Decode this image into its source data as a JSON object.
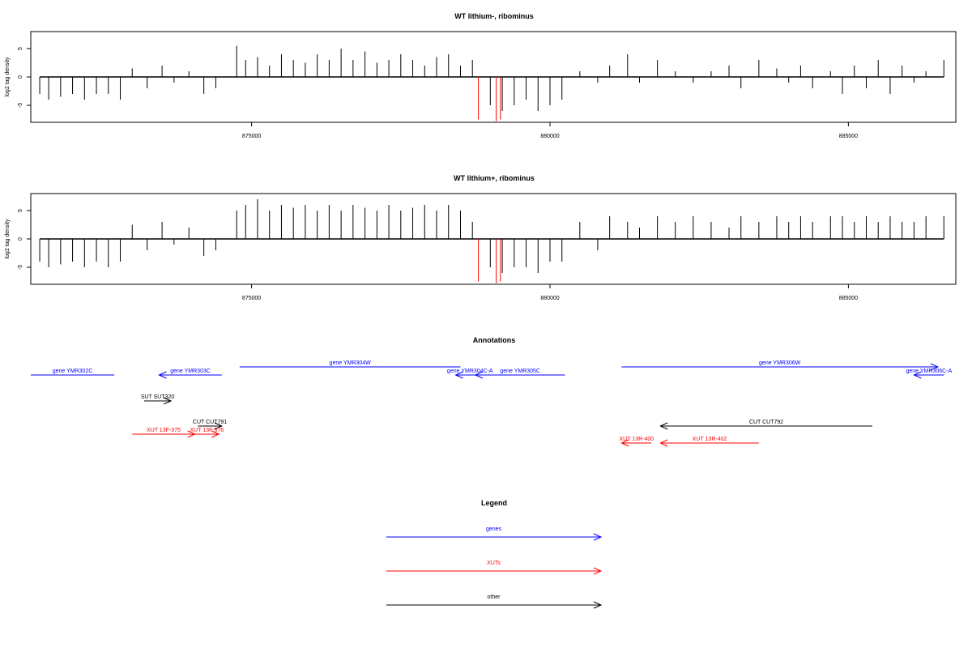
{
  "chart_data": [
    {
      "type": "bar",
      "title": "WT lithium-, ribominus",
      "xlabel": "",
      "ylabel": "log2 tag density",
      "xlim": [
        871300,
        886800
      ],
      "ylim": [
        -8,
        8
      ],
      "x_ticks": [
        875000,
        880000,
        885000
      ],
      "y_ticks": [
        5,
        0,
        -5
      ],
      "x_tick_labels": [
        "875000",
        "880000",
        "885000"
      ],
      "y_tick_labels": [
        "5",
        "0",
        "-5"
      ],
      "grid": false,
      "colors": {
        "default": "#000000",
        "highlight": "#ff0000"
      },
      "series": [
        {
          "name": "",
          "x": [
            871450,
            871600,
            871800,
            872000,
            872200,
            872400,
            872600,
            872800,
            873000,
            873250,
            873500,
            873700,
            873950,
            874200,
            874400,
            874750,
            874900,
            875100,
            875300,
            875500,
            875700,
            875900,
            876100,
            876300,
            876500,
            876700,
            876900,
            877100,
            877300,
            877500,
            877700,
            877900,
            878100,
            878300,
            878500,
            878700,
            879000,
            879200,
            879400,
            879600,
            879800,
            880000,
            880200,
            880500,
            880800,
            881000,
            881300,
            881500,
            881800,
            882100,
            882400,
            882700,
            883000,
            883200,
            883500,
            883800,
            884000,
            884200,
            884400,
            884700,
            884900,
            885100,
            885300,
            885500,
            885700,
            885900,
            886100,
            886300,
            886600
          ],
          "values": [
            -3,
            -4,
            -3.5,
            -3,
            -4,
            -3,
            -3,
            -4,
            1.5,
            -2,
            2,
            -1,
            1,
            -3,
            -2,
            5.5,
            3,
            3.5,
            2,
            4,
            3,
            2.5,
            4,
            3,
            5,
            3,
            4.5,
            2.5,
            3,
            4,
            3,
            2,
            3.5,
            4,
            2,
            3,
            -5,
            -6,
            -5,
            -4,
            -6,
            -5,
            -4,
            1,
            -1,
            2,
            4,
            -1,
            3,
            1,
            -1,
            1,
            2,
            -2,
            3,
            1.5,
            -1,
            2,
            -2,
            1,
            -3,
            2,
            -2,
            3,
            -3,
            2,
            -1,
            1,
            3
          ]
        }
      ],
      "highlights": [
        {
          "x": 878800,
          "value": -7.5
        },
        {
          "x": 879100,
          "value": -7.8
        },
        {
          "x": 879170,
          "value": -7.5
        }
      ]
    },
    {
      "type": "bar",
      "title": "WT lithium+, ribominus",
      "xlabel": "",
      "ylabel": "log2 tag density",
      "xlim": [
        871300,
        886800
      ],
      "ylim": [
        -8,
        8
      ],
      "x_ticks": [
        875000,
        880000,
        885000
      ],
      "y_ticks": [
        5,
        0,
        -5
      ],
      "x_tick_labels": [
        "875000",
        "880000",
        "885000"
      ],
      "y_tick_labels": [
        "5",
        "0",
        "-5"
      ],
      "grid": false,
      "colors": {
        "default": "#000000",
        "highlight": "#ff0000"
      },
      "series": [
        {
          "name": "",
          "x": [
            871450,
            871600,
            871800,
            872000,
            872200,
            872400,
            872600,
            872800,
            873000,
            873250,
            873500,
            873700,
            873950,
            874200,
            874400,
            874750,
            874900,
            875100,
            875300,
            875500,
            875700,
            875900,
            876100,
            876300,
            876500,
            876700,
            876900,
            877100,
            877300,
            877500,
            877700,
            877900,
            878100,
            878300,
            878500,
            878700,
            879000,
            879200,
            879400,
            879600,
            879800,
            880000,
            880200,
            880500,
            880800,
            881000,
            881300,
            881500,
            881800,
            882100,
            882400,
            882700,
            883000,
            883200,
            883500,
            883800,
            884000,
            884200,
            884400,
            884700,
            884900,
            885100,
            885300,
            885500,
            885700,
            885900,
            886100,
            886300,
            886600
          ],
          "values": [
            -4,
            -5,
            -4.5,
            -4,
            -5,
            -4,
            -5,
            -4,
            2.5,
            -2,
            3,
            -1,
            2,
            -3,
            -2,
            5,
            6,
            7,
            5,
            6,
            5.5,
            6,
            5,
            6,
            5,
            6,
            5.5,
            5,
            6,
            5,
            5.5,
            6,
            5,
            6,
            5,
            3,
            -5,
            -6,
            -5,
            -5,
            -6,
            -4,
            -4,
            3,
            -2,
            4,
            3,
            2,
            4,
            3,
            4,
            3,
            2,
            4,
            3,
            4,
            3,
            4,
            3,
            4,
            4,
            3,
            4,
            3,
            4,
            3,
            3,
            4,
            4
          ]
        }
      ],
      "highlights": [
        {
          "x": 878800,
          "value": -7.5
        },
        {
          "x": 879100,
          "value": -7.8
        },
        {
          "x": 879170,
          "value": -7.5
        }
      ]
    }
  ],
  "annotations": {
    "title": "Annotations",
    "xlim": [
      871300,
      886800
    ],
    "features": [
      {
        "label": "gene YMR302C",
        "start": 871300,
        "end": 872700,
        "strand": "none",
        "category": "genes"
      },
      {
        "label": "gene YMR303C",
        "start": 873450,
        "end": 874500,
        "strand": "-",
        "category": "genes"
      },
      {
        "label": "gene YMR304W",
        "start": 874800,
        "end": 878500,
        "strand": "none",
        "category": "genes"
      },
      {
        "label": "gene YMR304C-A",
        "start": 878420,
        "end": 878900,
        "strand": "-",
        "category": "genes"
      },
      {
        "label": "gene YMR305C",
        "start": 878750,
        "end": 880250,
        "strand": "-",
        "category": "genes"
      },
      {
        "label": "gene YMR306W",
        "start": 881200,
        "end": 886500,
        "strand": "+",
        "category": "genes"
      },
      {
        "label": "gene YMR306C-A",
        "start": 886100,
        "end": 886600,
        "strand": "-",
        "category": "genes"
      },
      {
        "label": "SUT SUT320",
        "start": 873200,
        "end": 873650,
        "strand": "+",
        "category": "other"
      },
      {
        "label": "CUT CUT791",
        "start": 874100,
        "end": 874500,
        "strand": "+",
        "category": "other"
      },
      {
        "label": "XUT 13F-375",
        "start": 873000,
        "end": 874050,
        "strand": "+",
        "category": "XUTs"
      },
      {
        "label": "XUT 13F-376",
        "start": 874050,
        "end": 874450,
        "strand": "+",
        "category": "XUTs"
      },
      {
        "label": "CUT CUT792",
        "start": 881850,
        "end": 885400,
        "strand": "-",
        "category": "other"
      },
      {
        "label": "XUT 13R-400",
        "start": 881200,
        "end": 881700,
        "strand": "-",
        "category": "XUTs"
      },
      {
        "label": "XUT 13R-402",
        "start": 881850,
        "end": 883500,
        "strand": "-",
        "category": "XUTs"
      }
    ]
  },
  "legend": {
    "title": "Legend",
    "items": [
      {
        "label": "genes",
        "color": "#0000ff"
      },
      {
        "label": "XUTs",
        "color": "#ff0000"
      },
      {
        "label": "other",
        "color": "#000000"
      }
    ]
  }
}
